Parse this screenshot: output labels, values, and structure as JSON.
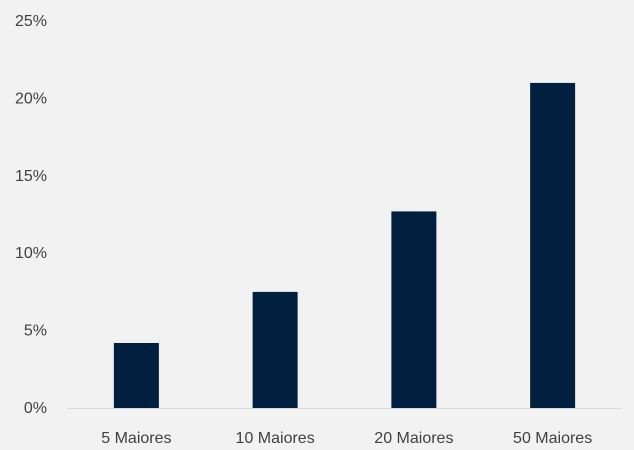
{
  "chart_data": {
    "type": "bar",
    "categories": [
      "5 Maiores",
      "10 Maiores",
      "20 Maiores",
      "50 Maiores"
    ],
    "values": [
      4.2,
      7.5,
      12.7,
      21.0
    ],
    "title": "",
    "xlabel": "",
    "ylabel": "",
    "ylim": [
      0,
      25
    ],
    "yticks": [
      0,
      5,
      10,
      15,
      20,
      25
    ],
    "ytick_labels": [
      "0%",
      "5%",
      "10%",
      "15%",
      "20%",
      "25%"
    ],
    "grid": false,
    "legend": "none",
    "colors": {
      "bar": "#012040",
      "background": "#f2f2f2",
      "axis": "#d9d9d9",
      "text": "#404040"
    }
  }
}
